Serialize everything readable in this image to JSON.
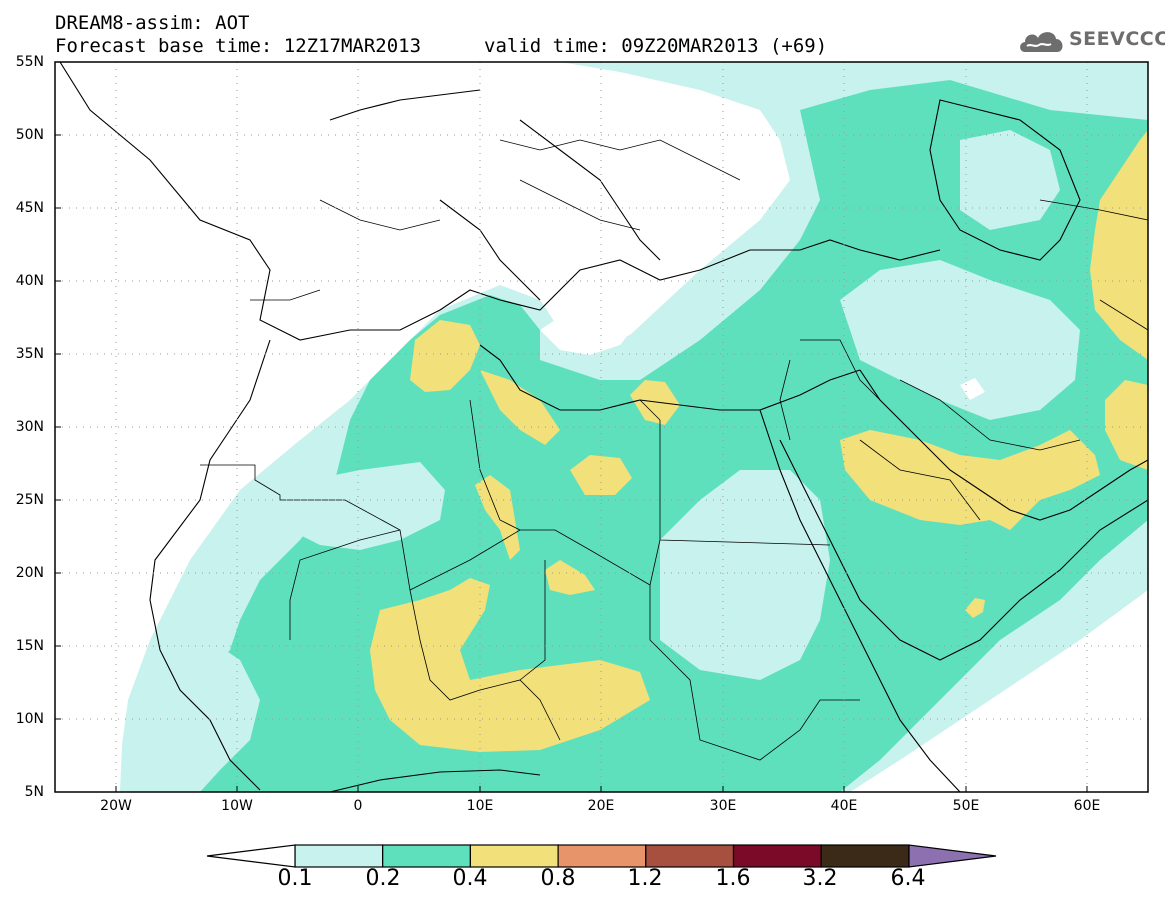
{
  "title": {
    "line1": "DREAM8-assim: AOT",
    "line2": "Forecast base time: 12Z17MAR2013",
    "valid": "valid time: 09Z20MAR2013 (+69)"
  },
  "logo": {
    "text": "SEEVCCC",
    "icon": "cloud-icon"
  },
  "axes": {
    "lat_labels": [
      "55N",
      "50N",
      "45N",
      "40N",
      "35N",
      "30N",
      "25N",
      "20N",
      "15N",
      "10N",
      "5N"
    ],
    "lon_labels": [
      "20W",
      "10W",
      "0",
      "10E",
      "20E",
      "30E",
      "40E",
      "50E",
      "60E"
    ],
    "lon_range": [
      -25,
      65
    ],
    "lat_range": [
      5,
      55
    ],
    "grid": "dotted"
  },
  "colors": {
    "c_0_1": "#c8f2ee",
    "c_0_2": "#5fe0bd",
    "c_0_4": "#f2e07a",
    "c_0_8": "#e8946a",
    "c_1_2": "#a85040",
    "c_1_6": "#7a0a28",
    "c_3_2": "#3c2a18",
    "c_6_4": "#8c70b0"
  },
  "colorbar": {
    "labels": [
      "0.1",
      "0.2",
      "0.4",
      "0.8",
      "1.2",
      "1.6",
      "3.2",
      "6.4"
    ],
    "boxes": [
      "#c8f2ee",
      "#5fe0bd",
      "#f2e07a",
      "#e8946a",
      "#a85040",
      "#7a0a28",
      "#3c2a18"
    ],
    "left_arrow": "#ffffff",
    "right_arrow": "#8c70b0"
  }
}
